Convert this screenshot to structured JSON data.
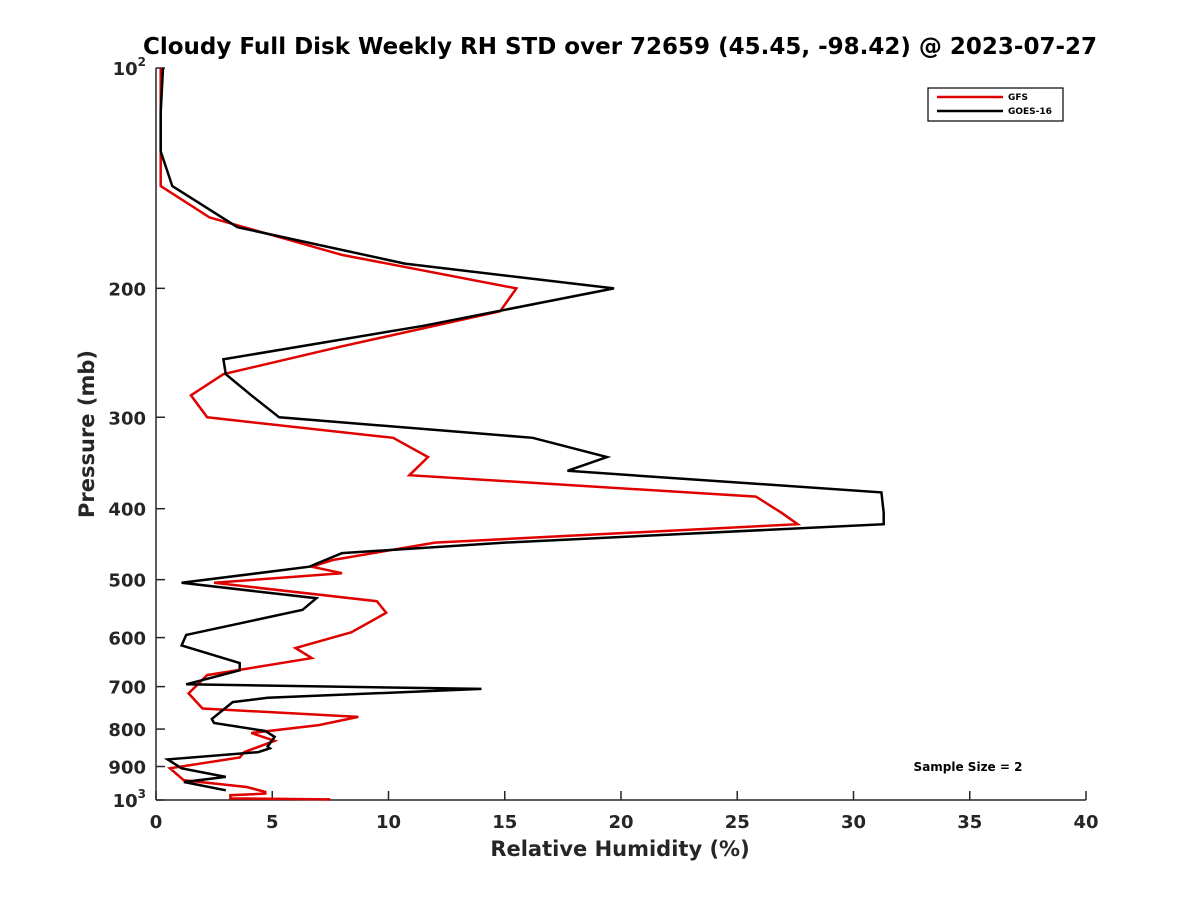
{
  "chart_data": {
    "type": "line",
    "title": "Cloudy Full Disk Weekly RH STD over 72659 (45.45, -98.42) @ 2023-07-27",
    "xlabel": "Relative Humidity (%)",
    "ylabel": "Pressure (mb)",
    "xlim": [
      0,
      40
    ],
    "ylim": [
      100,
      1000
    ],
    "yscale": "log",
    "y_reversed": true,
    "grid": false,
    "legend_position": "top-right",
    "xticks": [
      "0",
      "5",
      "10",
      "15",
      "20",
      "25",
      "30",
      "35",
      "40"
    ],
    "yticks": [
      {
        "value": 100,
        "base": "10",
        "exp": "2"
      },
      {
        "value": 200,
        "base": "200",
        "exp": ""
      },
      {
        "value": 300,
        "base": "300",
        "exp": ""
      },
      {
        "value": 400,
        "base": "400",
        "exp": ""
      },
      {
        "value": 500,
        "base": "500",
        "exp": ""
      },
      {
        "value": 600,
        "base": "600",
        "exp": ""
      },
      {
        "value": 700,
        "base": "700",
        "exp": ""
      },
      {
        "value": 800,
        "base": "800",
        "exp": ""
      },
      {
        "value": 900,
        "base": "900",
        "exp": ""
      },
      {
        "value": 1000,
        "base": "10",
        "exp": "3"
      }
    ],
    "annotation": "Sample Size = 2",
    "series": [
      {
        "name": "GFS",
        "color": "#e00000",
        "x": [
          0.2,
          0.2,
          0.2,
          0.2,
          2.3,
          8.0,
          15.5,
          14.8,
          8.0,
          2.9,
          1.5,
          2.2,
          10.2,
          11.7,
          10.9,
          25.8,
          26.9,
          27.6,
          12.0,
          7.6,
          6.7,
          8.0,
          2.5,
          9.5,
          9.9,
          8.4,
          6.0,
          6.7,
          2.2,
          1.4,
          2.0,
          8.7,
          7.0,
          4.1,
          5.1,
          3.8,
          3.6,
          0.6,
          1.2,
          3.9,
          4.7,
          4.7,
          3.2,
          3.2,
          7.5
        ],
        "y": [
          100,
          115,
          130,
          145,
          160,
          180,
          200,
          215,
          240,
          262,
          280,
          300,
          320,
          340,
          360,
          385,
          405,
          420,
          445,
          470,
          480,
          490,
          505,
          535,
          555,
          590,
          620,
          640,
          675,
          715,
          750,
          770,
          790,
          810,
          830,
          860,
          875,
          905,
          940,
          960,
          975,
          980,
          985,
          995,
          998
        ]
      },
      {
        "name": "GOES-16",
        "color": "#000000",
        "x": [
          0.3,
          0.2,
          0.2,
          0.7,
          3.5,
          10.7,
          19.7,
          11.5,
          2.9,
          3.0,
          4.1,
          5.3,
          16.2,
          19.4,
          17.7,
          31.2,
          31.3,
          31.3,
          15.0,
          8.0,
          6.6,
          1.1,
          6.9,
          6.3,
          1.3,
          1.1,
          3.6,
          3.6,
          1.3,
          14.0,
          4.8,
          3.3,
          2.4,
          2.5,
          4.7,
          5.1,
          4.8,
          4.9,
          4.4,
          0.5,
          1.1,
          3.0,
          1.2,
          3.0
        ],
        "y": [
          100,
          115,
          130,
          145,
          165,
          185,
          200,
          225,
          250,
          262,
          280,
          300,
          320,
          340,
          355,
          380,
          405,
          420,
          445,
          460,
          480,
          505,
          530,
          550,
          595,
          615,
          650,
          665,
          695,
          705,
          725,
          735,
          775,
          785,
          805,
          820,
          845,
          850,
          860,
          880,
          905,
          930,
          945,
          970
        ]
      }
    ]
  }
}
